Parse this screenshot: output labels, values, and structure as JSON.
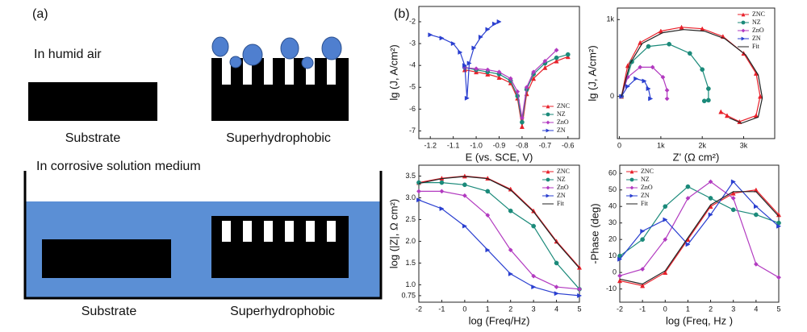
{
  "panel_a": {
    "label": "(a)",
    "humid_air": "In humid air",
    "substrate_top": "Substrate",
    "superhydrophobic_top": "Superhydrophobic",
    "solution": "In corrosive solution medium",
    "substrate_bottom": "Substrate",
    "superhydrophobic_bottom": "Superhydrophobic"
  },
  "panel_b_label": "(b)",
  "chart_data": [
    {
      "type": "line",
      "xlabel": "E (vs. SCE, V)",
      "ylabel": "lg (J, A/cm²)",
      "xlim": [
        -1.25,
        -0.55
      ],
      "xticks": [
        -1.2,
        -1.1,
        {
          "value": -1.0,
          "label": "-1.0"
        },
        -0.9,
        -0.8,
        -0.7,
        -0.6
      ],
      "ylim": [
        -7.35,
        -1.3
      ],
      "yticks": [
        -2,
        -3,
        -4,
        -5,
        -6,
        -7
      ],
      "legend": "lower right",
      "series": [
        {
          "name": "ZNC",
          "color": "#e8202a",
          "marker": "triangle",
          "x": [
            -1.05,
            -1.0,
            -0.95,
            -0.9,
            -0.85,
            -0.82,
            -0.8,
            -0.78,
            -0.75,
            -0.7,
            -0.65,
            -0.6
          ],
          "values": [
            -4.2,
            -4.3,
            -4.4,
            -4.55,
            -4.8,
            -5.5,
            -6.8,
            -5.3,
            -4.6,
            -4.1,
            -3.8,
            -3.6
          ]
        },
        {
          "name": "NZ",
          "color": "#1b8a7a",
          "marker": "circle",
          "x": [
            -1.05,
            -1.0,
            -0.95,
            -0.9,
            -0.85,
            -0.82,
            -0.8,
            -0.78,
            -0.75,
            -0.7,
            -0.65,
            -0.6
          ],
          "values": [
            -4.1,
            -4.2,
            -4.3,
            -4.4,
            -4.7,
            -5.4,
            -6.6,
            -5.1,
            -4.4,
            -3.9,
            -3.65,
            -3.5
          ]
        },
        {
          "name": "ZnO",
          "color": "#b23ac0",
          "marker": "diamond",
          "x": [
            -1.05,
            -1.0,
            -0.95,
            -0.9,
            -0.85,
            -0.82,
            -0.8,
            -0.78,
            -0.75,
            -0.7,
            -0.65
          ],
          "values": [
            -4.1,
            -4.15,
            -4.2,
            -4.3,
            -4.6,
            -5.2,
            -6.4,
            -5.0,
            -4.3,
            -3.8,
            -3.3
          ]
        },
        {
          "name": "ZN",
          "color": "#2a3fd0",
          "marker": "triangle-right",
          "x": [
            -1.2,
            -1.15,
            -1.1,
            -1.07,
            -1.05,
            -1.04,
            -1.03,
            -1.01,
            -0.98,
            -0.95,
            -0.92,
            -0.9
          ],
          "values": [
            -2.6,
            -2.75,
            -3.0,
            -3.4,
            -4.0,
            -5.5,
            -3.9,
            -3.2,
            -2.7,
            -2.35,
            -2.1,
            -2.0
          ]
        }
      ]
    },
    {
      "type": "line",
      "xlabel": "Z' (Ω cm²)",
      "ylabel": "lg (J, A/cm²)",
      "xlim": [
        -50,
        3750
      ],
      "xticks": [
        0,
        {
          "value": 1000,
          "label": "1k"
        },
        {
          "value": 2000,
          "label": "2k"
        },
        {
          "value": 3000,
          "label": "3k"
        }
      ],
      "ylim": [
        -550,
        1150
      ],
      "yticks": [
        0,
        {
          "value": 1000,
          "label": "1k"
        }
      ],
      "legend": "upper right",
      "series": [
        {
          "name": "ZNC",
          "color": "#e8202a",
          "marker": "triangle",
          "x": [
            50,
            200,
            500,
            1000,
            1500,
            2000,
            2500,
            3000,
            3300,
            3400,
            3300,
            2900,
            2600,
            2450
          ],
          "values": [
            0,
            400,
            700,
            850,
            900,
            880,
            780,
            560,
            300,
            0,
            -250,
            -330,
            -250,
            -200
          ]
        },
        {
          "name": "NZ",
          "color": "#1b8a7a",
          "marker": "circle",
          "x": [
            50,
            300,
            700,
            1200,
            1700,
            2000,
            2150,
            2150,
            2050
          ],
          "values": [
            0,
            450,
            650,
            680,
            560,
            350,
            100,
            -50,
            -60
          ]
        },
        {
          "name": "ZnO",
          "color": "#b23ac0",
          "marker": "diamond",
          "x": [
            50,
            200,
            500,
            800,
            1050,
            1150,
            1150
          ],
          "values": [
            0,
            250,
            380,
            380,
            250,
            80,
            -30
          ]
        },
        {
          "name": "ZN",
          "color": "#2a3fd0",
          "marker": "triangle-right",
          "x": [
            50,
            200,
            400,
            600,
            700,
            750
          ],
          "values": [
            0,
            130,
            230,
            200,
            100,
            -30
          ]
        },
        {
          "name": "Fit",
          "color": "#222222",
          "marker": "none",
          "x": [
            50,
            250,
            550,
            1050,
            1550,
            2050,
            2550,
            3050,
            3350,
            3450,
            3350,
            2950,
            2650
          ],
          "values": [
            0,
            420,
            690,
            830,
            870,
            850,
            750,
            540,
            280,
            -20,
            -270,
            -350,
            -280
          ]
        }
      ]
    },
    {
      "type": "line",
      "xlabel": "log (Freq/Hz)",
      "ylabel": "log (|Z|, Ω cm²)",
      "xlim": [
        -2,
        5
      ],
      "xticks": [
        -2,
        -1,
        0,
        1,
        2,
        3,
        4,
        5
      ],
      "ylim": [
        0.6,
        3.75
      ],
      "yticks": [
        3.5,
        {
          "value": 3.0,
          "label": "3.0"
        },
        2.5,
        {
          "value": 2.0,
          "label": "2.0"
        },
        1.5,
        {
          "value": 1.0,
          "label": "1.0"
        },
        0.75
      ],
      "legend": "upper right",
      "x": [
        -2,
        -1,
        0,
        1,
        2,
        3,
        4,
        5
      ],
      "series": [
        {
          "name": "ZNC",
          "color": "#e8202a",
          "marker": "triangle",
          "values": [
            3.35,
            3.45,
            3.5,
            3.45,
            3.2,
            2.7,
            2.0,
            1.4
          ]
        },
        {
          "name": "NZ",
          "color": "#1b8a7a",
          "marker": "circle",
          "values": [
            3.35,
            3.35,
            3.3,
            3.15,
            2.7,
            2.35,
            1.5,
            0.9
          ]
        },
        {
          "name": "ZnO",
          "color": "#b23ac0",
          "marker": "diamond",
          "values": [
            3.15,
            3.15,
            3.05,
            2.6,
            1.8,
            1.2,
            0.95,
            0.9
          ]
        },
        {
          "name": "ZN",
          "color": "#2a3fd0",
          "marker": "triangle-right",
          "values": [
            2.95,
            2.75,
            2.35,
            1.8,
            1.25,
            0.95,
            0.8,
            0.75
          ]
        },
        {
          "name": "Fit",
          "color": "#222222",
          "marker": "none",
          "values": [
            3.33,
            3.44,
            3.49,
            3.44,
            3.18,
            2.68,
            1.98,
            1.38
          ]
        }
      ]
    },
    {
      "type": "line",
      "xlabel": "log (Freq, Hz )",
      "ylabel": "-Phase (deg)",
      "xlim": [
        -2,
        5
      ],
      "xticks": [
        -2,
        -1,
        0,
        1,
        2,
        3,
        4,
        5
      ],
      "ylim": [
        -18,
        65
      ],
      "yticks": [
        60,
        50,
        40,
        30,
        20,
        10,
        0,
        -10
      ],
      "legend": "upper left",
      "x": [
        -2,
        -1,
        0,
        1,
        2,
        3,
        4,
        5
      ],
      "series": [
        {
          "name": "ZNC",
          "color": "#e8202a",
          "marker": "triangle",
          "values": [
            -5,
            -8,
            0,
            20,
            40,
            48,
            50,
            35
          ]
        },
        {
          "name": "NZ",
          "color": "#1b8a7a",
          "marker": "circle",
          "values": [
            10,
            20,
            40,
            52,
            45,
            38,
            35,
            30
          ]
        },
        {
          "name": "ZnO",
          "color": "#b23ac0",
          "marker": "diamond",
          "values": [
            -2,
            2,
            20,
            45,
            55,
            45,
            5,
            -3
          ]
        },
        {
          "name": "ZN",
          "color": "#2a3fd0",
          "marker": "triangle-right",
          "values": [
            8,
            25,
            32,
            17,
            35,
            55,
            40,
            28
          ]
        },
        {
          "name": "Fit",
          "color": "#222222",
          "marker": "none",
          "values": [
            -4,
            -7,
            1,
            21,
            41,
            49,
            49,
            34
          ]
        }
      ]
    }
  ]
}
